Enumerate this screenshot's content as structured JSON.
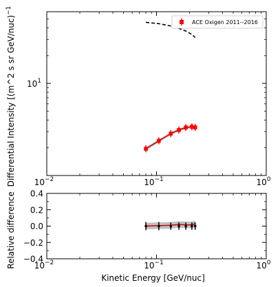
{
  "chart_data": [
    {
      "type": "scatter",
      "panel": "main",
      "xscale": "log",
      "yscale": "log",
      "xlim": [
        0.01,
        1
      ],
      "ylim": [
        1.0,
        60
      ],
      "xlabel": "",
      "ylabel": "Differential Intensity [(m^2 s sr GeV/nuc)$^{-1}$]",
      "ylabel_display": "Differential Intensity [(m^2 s sr GeV/nuc)",
      "ylabel_exponent": "−1",
      "xticks": [
        {
          "value": 0.01,
          "base": "10",
          "exp": "−2"
        },
        {
          "value": 0.1,
          "base": "10",
          "exp": "−1"
        },
        {
          "value": 1,
          "base": "10",
          "exp": "0"
        }
      ],
      "yticks": [
        {
          "value": 10,
          "base": "10",
          "exp": "1"
        }
      ],
      "legend": {
        "location": "upper right",
        "entries": [
          "ACE Oxigen 2011--2016"
        ]
      },
      "series": [
        {
          "name": "ACE Oxigen 2011--2016",
          "color": "#ff0000",
          "marker": "square",
          "x": [
            0.08,
            0.105,
            0.135,
            0.16,
            0.185,
            0.21,
            0.225
          ],
          "y": [
            1.95,
            2.38,
            2.85,
            3.12,
            3.32,
            3.38,
            3.33
          ]
        }
      ],
      "model_band": {
        "color": "#cc0000",
        "band_color": "#b0b0b0",
        "x": [
          0.08,
          0.105,
          0.135,
          0.16,
          0.185,
          0.21,
          0.225
        ],
        "y": [
          1.95,
          2.38,
          2.85,
          3.12,
          3.32,
          3.38,
          3.33
        ],
        "y_low": [
          1.88,
          2.29,
          2.75,
          3.02,
          3.21,
          3.27,
          3.22
        ],
        "y_high": [
          2.02,
          2.47,
          2.95,
          3.22,
          3.43,
          3.49,
          3.44
        ]
      },
      "dashed_curve": {
        "color": "#000000",
        "x": [
          0.08,
          0.105,
          0.135,
          0.16,
          0.185,
          0.21,
          0.225
        ],
        "y": [
          46.0,
          44.5,
          42.0,
          39.5,
          37.0,
          34.0,
          31.5
        ]
      }
    },
    {
      "type": "scatter",
      "panel": "ratio",
      "xscale": "log",
      "xlim": [
        0.01,
        1
      ],
      "ylim": [
        -0.4,
        0.4
      ],
      "xlabel": "Kinetic Energy [GeV/nuc]",
      "ylabel": "Relative difference",
      "xticks": [
        {
          "value": 0.01,
          "base": "10",
          "exp": "−2"
        },
        {
          "value": 0.1,
          "base": "10",
          "exp": "−1"
        },
        {
          "value": 1,
          "base": "10",
          "exp": "0"
        }
      ],
      "yticks": [
        {
          "value": 0.4,
          "label": "0.4"
        },
        {
          "value": 0.2,
          "label": "0.2"
        },
        {
          "value": 0.0,
          "label": "0.0"
        },
        {
          "value": -0.2,
          "label": "−0.2"
        },
        {
          "value": -0.4,
          "label": "−0.4"
        }
      ],
      "points": {
        "color": "#000000",
        "x": [
          0.08,
          0.105,
          0.135,
          0.16,
          0.185,
          0.21,
          0.225
        ],
        "y": [
          0.0,
          0.0,
          0.0,
          0.0,
          0.0,
          0.0,
          0.0
        ],
        "err": [
          0.05,
          0.05,
          0.045,
          0.045,
          0.045,
          0.045,
          0.045
        ]
      },
      "model_band": {
        "color": "#cc0000",
        "band_color": "#b0b0b0",
        "x": [
          0.08,
          0.105,
          0.135,
          0.16,
          0.185,
          0.21,
          0.225
        ],
        "y": [
          0.0,
          0.005,
          0.01,
          0.02,
          0.015,
          0.015,
          0.03
        ],
        "y_low": [
          -0.04,
          -0.035,
          -0.03,
          -0.02,
          -0.025,
          -0.025,
          -0.01
        ],
        "y_high": [
          0.04,
          0.045,
          0.05,
          0.06,
          0.055,
          0.055,
          0.07
        ]
      }
    }
  ]
}
